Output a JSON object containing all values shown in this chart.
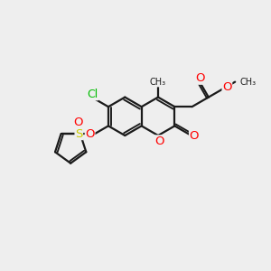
{
  "bg_color": "#eeeeee",
  "bond_color": "#1a1a1a",
  "bond_width": 1.6,
  "atom_colors": {
    "O": "#ff0000",
    "S": "#cccc00",
    "Cl": "#00bb00",
    "C": "#1a1a1a"
  },
  "font_size": 8.5,
  "figsize": [
    3.0,
    3.0
  ],
  "dpi": 100
}
